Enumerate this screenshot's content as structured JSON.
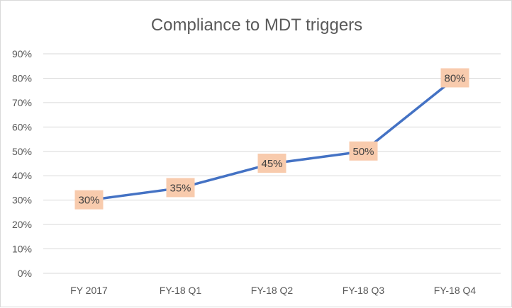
{
  "chart_data": {
    "type": "line",
    "title": "Compliance to MDT triggers",
    "categories": [
      "FY 2017",
      "FY-18 Q1",
      "FY-18 Q2",
      "FY-18 Q3",
      "FY-18 Q4"
    ],
    "series": [
      {
        "values": [
          30,
          35,
          45,
          50,
          80
        ],
        "color": "#4472c4"
      }
    ],
    "data_labels": [
      "30%",
      "35%",
      "45%",
      "50%",
      "80%"
    ],
    "data_label_fill": "#f8cbad",
    "ylim": [
      0,
      90
    ],
    "yticks": [
      "0%",
      "10%",
      "20%",
      "30%",
      "40%",
      "50%",
      "60%",
      "70%",
      "80%",
      "90%"
    ],
    "xlabel": "",
    "ylabel": "",
    "grid": true,
    "legend": "none"
  }
}
